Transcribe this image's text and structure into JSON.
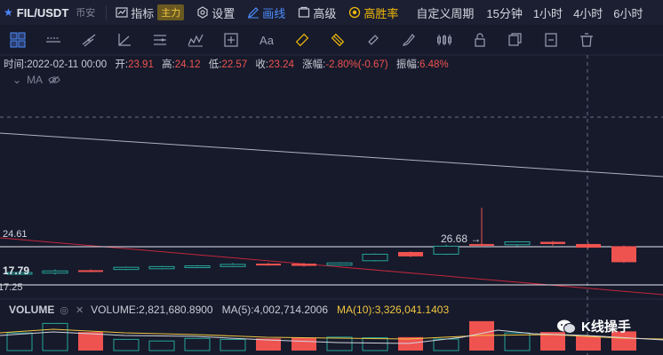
{
  "header": {
    "symbol": "FIL/USDT",
    "exchange": "币安",
    "indicators_label": "指标",
    "main_badge": "主力",
    "settings_label": "设置",
    "draw_label": "画线",
    "advanced_label": "高级",
    "winrate_label": "高胜率",
    "custom_period_label": "自定义周期",
    "intervals": [
      "15分钟",
      "1小时",
      "4小时",
      "6小时"
    ]
  },
  "draw_tools": [
    "crosshair-icon",
    "hline-dotted-icon",
    "trend-line-icon",
    "angle-icon",
    "parallel-lines-icon",
    "pattern-icon",
    "add-box-icon",
    "text-icon",
    "ruler-icon",
    "eraser-icon",
    "measure-icon",
    "brush-icon",
    "position-icon",
    "lock-icon",
    "copy-icon",
    "clear-icon",
    "delete-icon"
  ],
  "text_tool_label": "Aa",
  "ohlc": {
    "time_label": "时间:",
    "time": "2022-02-11 00:00",
    "open_label": "开:",
    "open": "23.91",
    "high_label": "高:",
    "high": "24.12",
    "low_label": "低:",
    "low": "22.57",
    "close_label": "收:",
    "close": "23.24",
    "change_label": "涨幅:",
    "change": "-2.80%(-0.67)",
    "amplitude_label": "振幅:",
    "amplitude": "6.48%"
  },
  "ma_label": "MA",
  "price_labels": {
    "level_1": "24.61",
    "level_2": "17.79",
    "level_3": "17.25",
    "peak": "26.68"
  },
  "volume": {
    "label": "VOLUME",
    "volume_text": "VOLUME:2,821,680.8900",
    "ma5_text": "MA(5):4,002,714.2006",
    "ma10_text": "MA(10):3,326,041.1403"
  },
  "watermark": "K线操手",
  "colors": {
    "up": "#26a69a",
    "down": "#ef5350",
    "accent": "#4d8dff",
    "gold": "#f0b90b",
    "background": "#161a2b"
  },
  "chart_data": {
    "type": "candlestick",
    "candles": [
      {
        "o": 17.79,
        "c": 17.79,
        "h": 17.79,
        "l": 17.79,
        "dir": "up"
      },
      {
        "o": 17.7,
        "c": 18.0,
        "h": 18.2,
        "l": 17.5,
        "dir": "up"
      },
      {
        "o": 18.1,
        "c": 17.9,
        "h": 18.2,
        "l": 17.8,
        "dir": "down"
      },
      {
        "o": 18.2,
        "c": 18.5,
        "h": 18.6,
        "l": 18.1,
        "dir": "up"
      },
      {
        "o": 18.3,
        "c": 18.6,
        "h": 18.7,
        "l": 18.2,
        "dir": "up"
      },
      {
        "o": 18.5,
        "c": 18.7,
        "h": 18.8,
        "l": 18.4,
        "dir": "up"
      },
      {
        "o": 18.6,
        "c": 18.9,
        "h": 19.1,
        "l": 18.5,
        "dir": "up"
      },
      {
        "o": 19.0,
        "c": 18.8,
        "h": 19.1,
        "l": 18.7,
        "dir": "down"
      },
      {
        "o": 19.0,
        "c": 18.7,
        "h": 19.1,
        "l": 18.6,
        "dir": "down"
      },
      {
        "o": 18.8,
        "c": 19.1,
        "h": 19.2,
        "l": 18.7,
        "dir": "up"
      },
      {
        "o": 19.4,
        "c": 20.3,
        "h": 20.4,
        "l": 19.3,
        "dir": "up"
      },
      {
        "o": 20.6,
        "c": 20.0,
        "h": 20.7,
        "l": 19.9,
        "dir": "down"
      },
      {
        "o": 20.3,
        "c": 21.4,
        "h": 21.6,
        "l": 20.2,
        "dir": "up"
      },
      {
        "o": 21.7,
        "c": 21.5,
        "h": 26.68,
        "l": 21.3,
        "dir": "down"
      },
      {
        "o": 21.6,
        "c": 22.0,
        "h": 22.1,
        "l": 21.4,
        "dir": "up"
      },
      {
        "o": 22.0,
        "c": 21.7,
        "h": 22.1,
        "l": 21.5,
        "dir": "down"
      },
      {
        "o": 21.7,
        "c": 21.2,
        "h": 21.9,
        "l": 21.1,
        "dir": "down"
      },
      {
        "o": 21.4,
        "c": 19.2,
        "h": 21.5,
        "l": 19.1,
        "dir": "down"
      }
    ],
    "volumes": [
      0.55,
      0.85,
      0.58,
      0.35,
      0.3,
      0.38,
      0.35,
      0.38,
      0.4,
      0.42,
      0.4,
      0.42,
      0.36,
      0.92,
      0.55,
      0.58,
      0.45,
      0.6
    ]
  }
}
